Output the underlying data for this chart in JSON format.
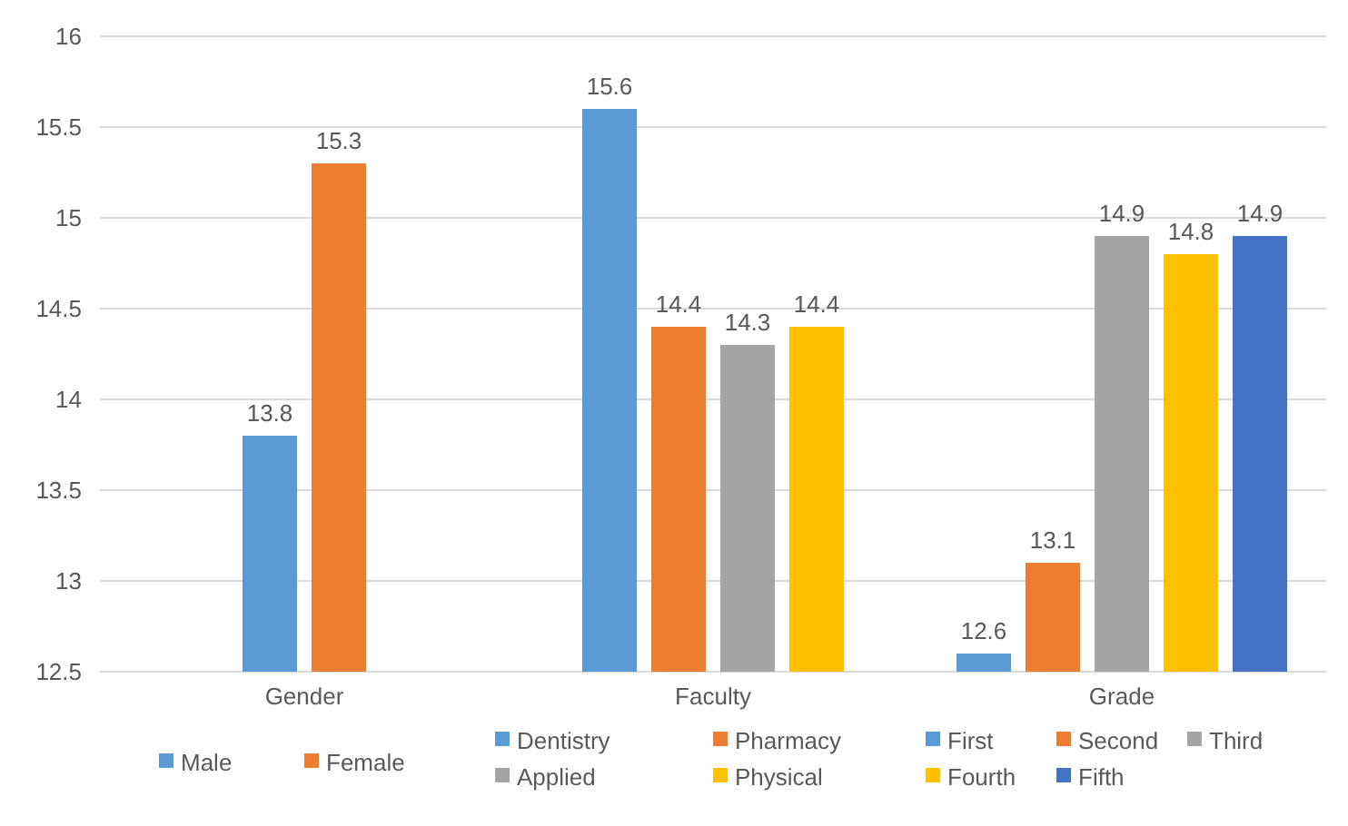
{
  "chart_data": {
    "type": "bar",
    "categories": [
      "Gender",
      "Faculty",
      "Grade"
    ],
    "series": [
      {
        "name": "Male",
        "color": "#5b9bd5",
        "values": [
          13.8,
          null,
          null
        ]
      },
      {
        "name": "Female",
        "color": "#ed7d31",
        "values": [
          15.3,
          null,
          null
        ]
      },
      {
        "name": "Dentistry",
        "color": "#5b9bd5",
        "values": [
          null,
          15.6,
          null
        ]
      },
      {
        "name": "Pharmacy",
        "color": "#ed7d31",
        "values": [
          null,
          14.4,
          null
        ]
      },
      {
        "name": "Applied",
        "color": "#a5a5a5",
        "values": [
          null,
          14.3,
          null
        ]
      },
      {
        "name": "Physical",
        "color": "#ffc000",
        "values": [
          null,
          14.4,
          null
        ]
      },
      {
        "name": "First",
        "color": "#5b9bd5",
        "values": [
          null,
          null,
          12.6
        ]
      },
      {
        "name": "Second",
        "color": "#ed7d31",
        "values": [
          null,
          null,
          13.1
        ]
      },
      {
        "name": "Third",
        "color": "#a5a5a5",
        "values": [
          null,
          null,
          14.9
        ]
      },
      {
        "name": "Fourth",
        "color": "#ffc000",
        "values": [
          null,
          null,
          14.8
        ]
      },
      {
        "name": "Fifth",
        "color": "#4472c4",
        "values": [
          null,
          null,
          14.9
        ]
      }
    ],
    "ylim": [
      12.5,
      16
    ],
    "yticks": [
      12.5,
      13,
      13.5,
      14,
      14.5,
      15,
      15.5,
      16
    ],
    "grid": "y",
    "legend": "bottom",
    "data_labels": true
  }
}
